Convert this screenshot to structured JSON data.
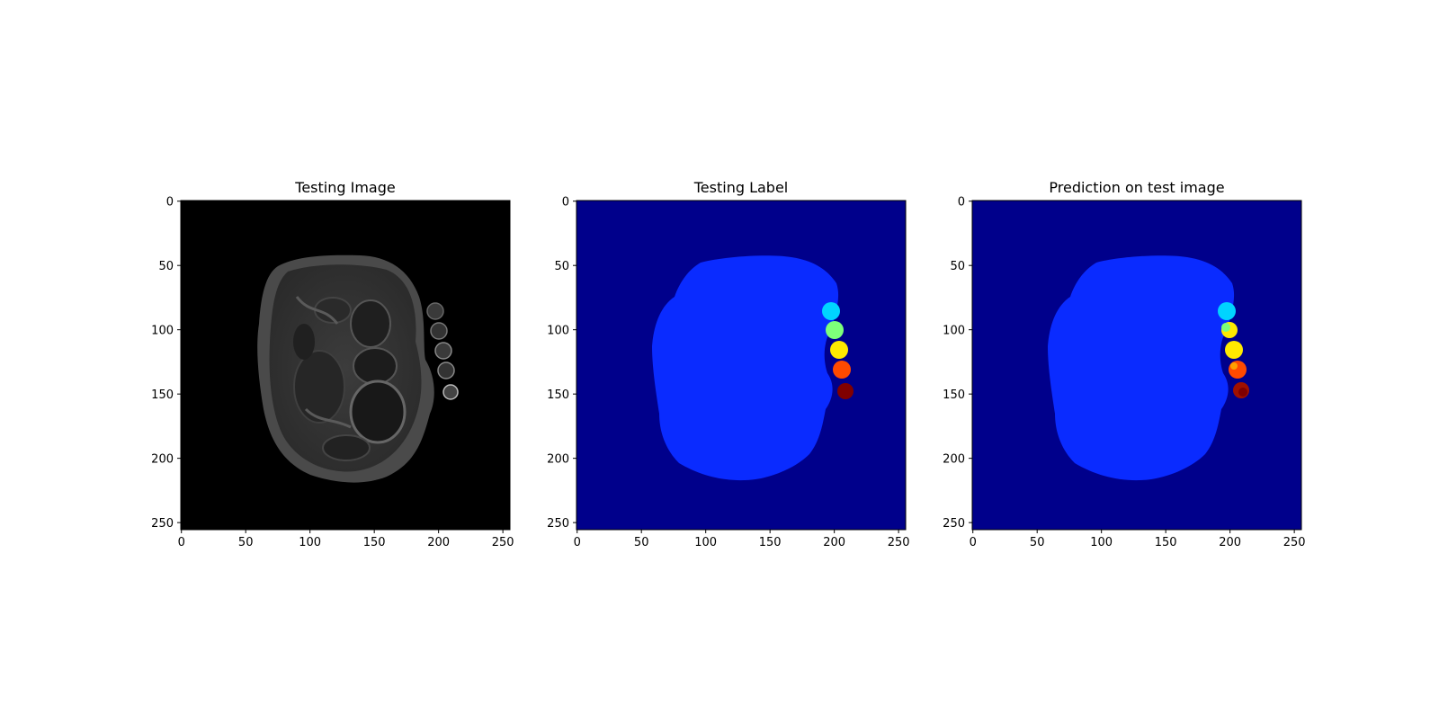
{
  "figure": {
    "background": "#ffffff",
    "panels": [
      {
        "title": "Testing Image",
        "kind": "mri",
        "x_ticks": [
          "0",
          "50",
          "100",
          "150",
          "200",
          "250"
        ],
        "y_ticks": [
          "0",
          "50",
          "100",
          "150",
          "200",
          "250"
        ]
      },
      {
        "title": "Testing Label",
        "kind": "label",
        "x_ticks": [
          "0",
          "50",
          "100",
          "150",
          "200",
          "250"
        ],
        "y_ticks": [
          "0",
          "50",
          "100",
          "150",
          "200",
          "250"
        ]
      },
      {
        "title": "Prediction on test image",
        "kind": "prediction",
        "x_ticks": [
          "0",
          "50",
          "100",
          "150",
          "200",
          "250"
        ],
        "y_ticks": [
          "0",
          "50",
          "100",
          "150",
          "200",
          "250"
        ]
      }
    ],
    "colors": {
      "label_background": "#00008b",
      "label_body": "#0a2bff",
      "vertebra_1": "#00d4ff",
      "vertebra_2": "#7dff7a",
      "vertebra_3": "#ffea00",
      "vertebra_4": "#ff4a00",
      "vertebra_5": "#800000"
    }
  }
}
